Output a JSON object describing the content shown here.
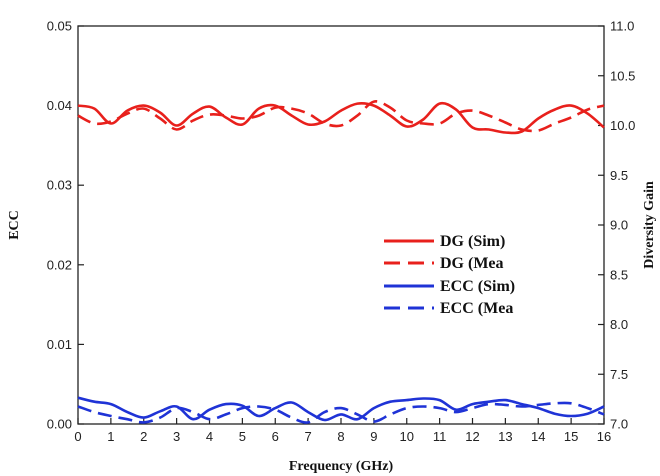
{
  "chart_data": {
    "type": "line",
    "xlabel": "Frequency (GHz)",
    "ylabel_left": "ECC",
    "ylabel_right": "Diversity Gain",
    "xlim": [
      0,
      16
    ],
    "ylim_left": [
      0,
      0.05
    ],
    "ylim_right": [
      7.0,
      11.0
    ],
    "x_ticks": [
      "0",
      "1",
      "2",
      "3",
      "4",
      "5",
      "6",
      "7",
      "8",
      "9",
      "10",
      "11",
      "12",
      "13",
      "14",
      "15",
      "16"
    ],
    "y_left_ticks": [
      "0.00",
      "0.01",
      "0.02",
      "0.03",
      "0.04",
      "0.05"
    ],
    "y_right_ticks": [
      "7.0",
      "7.5",
      "8.0",
      "8.5",
      "9.0",
      "9.5",
      "10.0",
      "10.5",
      "11.0"
    ],
    "grid": false,
    "legend_position": "center-right",
    "series": [
      {
        "name": "DG  (Sim)",
        "axis": "right",
        "color": "#e8201c",
        "dash": "solid",
        "x": [
          0,
          0.5,
          1,
          1.5,
          2,
          2.5,
          3,
          3.5,
          4,
          4.5,
          5,
          5.5,
          6,
          6.5,
          7,
          7.5,
          8,
          8.5,
          9,
          9.5,
          10,
          10.5,
          11,
          11.5,
          12,
          12.5,
          13,
          13.5,
          14,
          14.5,
          15,
          15.5,
          16
        ],
        "values": [
          10.2,
          10.17,
          10.02,
          10.15,
          10.2,
          10.13,
          10.0,
          10.12,
          10.19,
          10.08,
          10.01,
          10.17,
          10.2,
          10.1,
          10.01,
          10.04,
          10.15,
          10.22,
          10.2,
          10.1,
          9.99,
          10.06,
          10.22,
          10.16,
          9.98,
          9.96,
          9.93,
          9.94,
          10.07,
          10.16,
          10.2,
          10.12,
          9.98
        ]
      },
      {
        "name": "DG  (Mea",
        "axis": "right",
        "color": "#e8201c",
        "dash": "dashed",
        "x": [
          0,
          0.5,
          1,
          1.5,
          2,
          2.5,
          3,
          3.5,
          4,
          4.5,
          5,
          5.5,
          6,
          6.5,
          7,
          7.5,
          8,
          8.5,
          9,
          9.5,
          10,
          10.5,
          11,
          11.5,
          12,
          12.5,
          13,
          13.5,
          14,
          14.5,
          15,
          15.5,
          16
        ],
        "values": [
          10.1,
          10.02,
          10.04,
          10.12,
          10.17,
          10.07,
          9.96,
          10.05,
          10.11,
          10.1,
          10.07,
          10.1,
          10.18,
          10.17,
          10.12,
          10.02,
          10.0,
          10.1,
          10.24,
          10.18,
          10.05,
          10.02,
          10.02,
          10.12,
          10.15,
          10.1,
          10.03,
          9.96,
          9.95,
          10.02,
          10.08,
          10.16,
          10.2
        ]
      },
      {
        "name": "ECC (Sim)",
        "axis": "left",
        "color": "#1f33d6",
        "dash": "solid",
        "x": [
          0,
          0.5,
          1,
          1.5,
          2,
          2.5,
          3,
          3.5,
          4,
          4.5,
          5,
          5.5,
          6,
          6.5,
          7,
          7.5,
          8,
          8.5,
          9,
          9.5,
          10,
          10.5,
          11,
          11.5,
          12,
          12.5,
          13,
          13.5,
          14,
          14.5,
          15,
          15.5,
          16
        ],
        "values": [
          0.0033,
          0.0028,
          0.0025,
          0.0015,
          0.0008,
          0.0016,
          0.0022,
          0.0006,
          0.0018,
          0.0025,
          0.0023,
          0.001,
          0.002,
          0.0027,
          0.0015,
          0.0005,
          0.0012,
          0.0006,
          0.002,
          0.0028,
          0.003,
          0.0032,
          0.003,
          0.0018,
          0.0025,
          0.0028,
          0.003,
          0.0025,
          0.002,
          0.0013,
          0.001,
          0.0013,
          0.0022
        ]
      },
      {
        "name": "ECC (Mea",
        "axis": "left",
        "color": "#1f33d6",
        "dash": "dashed",
        "x": [
          0,
          0.5,
          1,
          1.5,
          2,
          2.5,
          3,
          3.5,
          4,
          4.5,
          5,
          5.5,
          6,
          6.5,
          7,
          7.5,
          8,
          8.5,
          9,
          9.5,
          10,
          10.5,
          11,
          11.5,
          12,
          12.5,
          13,
          13.5,
          14,
          14.5,
          15,
          15.5,
          16
        ],
        "values": [
          0.0022,
          0.0015,
          0.001,
          0.0006,
          0.0002,
          0.0008,
          0.002,
          0.0015,
          0.0006,
          0.0012,
          0.002,
          0.0022,
          0.0018,
          0.0008,
          0.0002,
          0.0015,
          0.002,
          0.0012,
          0.0003,
          0.0012,
          0.002,
          0.0022,
          0.002,
          0.0015,
          0.002,
          0.0025,
          0.0024,
          0.0022,
          0.0024,
          0.0026,
          0.0026,
          0.002,
          0.0012
        ]
      }
    ]
  }
}
